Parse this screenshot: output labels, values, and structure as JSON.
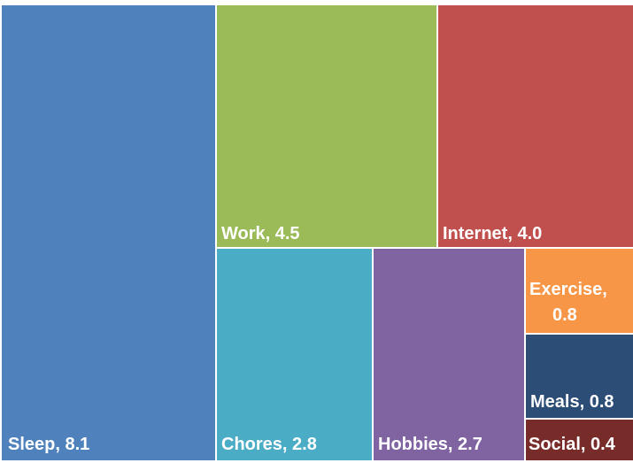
{
  "chart_data": {
    "type": "treemap",
    "title": "",
    "items": [
      {
        "id": "sleep",
        "label": "Sleep, 8.1",
        "name": "Sleep",
        "value": 8.1,
        "color": "#4f81bd"
      },
      {
        "id": "work",
        "label": "Work, 4.5",
        "name": "Work",
        "value": 4.5,
        "color": "#9bbb59"
      },
      {
        "id": "internet",
        "label": "Internet, 4.0",
        "name": "Internet",
        "value": 4.0,
        "color": "#c0504d"
      },
      {
        "id": "chores",
        "label": "Chores, 2.8",
        "name": "Chores",
        "value": 2.8,
        "color": "#4bacc6"
      },
      {
        "id": "hobbies",
        "label": "Hobbies, 2.7",
        "name": "Hobbies",
        "value": 2.7,
        "color": "#8064a2"
      },
      {
        "id": "exercise",
        "label": "Exercise, 0.8",
        "name": "Exercise",
        "value": 0.8,
        "color": "#f79646"
      },
      {
        "id": "meals",
        "label": "Meals, 0.8",
        "name": "Meals",
        "value": 0.8,
        "color": "#2c4d75"
      },
      {
        "id": "social",
        "label": "Social, 0.4",
        "name": "Social",
        "value": 0.4,
        "color": "#772c2a"
      }
    ]
  }
}
